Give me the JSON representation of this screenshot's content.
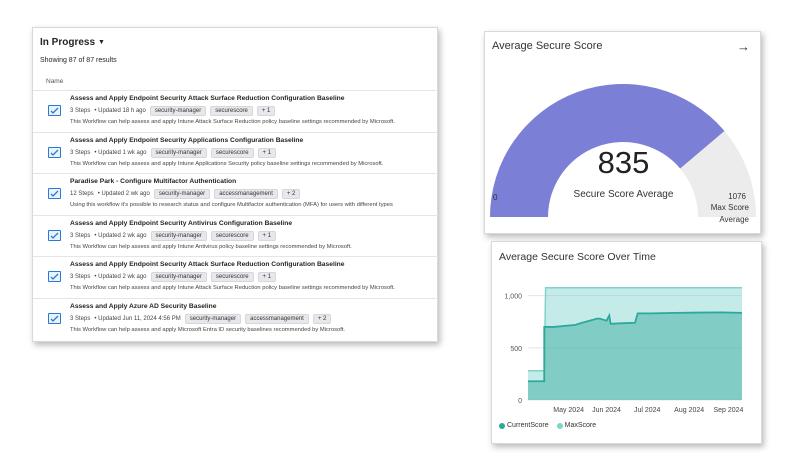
{
  "workflows": {
    "filter_label": "In Progress",
    "results_text": "Showing 87 of 87 results",
    "column_header": "Name",
    "items": [
      {
        "title": "Assess and Apply Endpoint Security Attack Surface Reduction Configuration Baseline",
        "steps": "3 Steps",
        "updated": "• Updated 18 h ago",
        "tags": [
          "security-manager",
          "securescore",
          "+ 1"
        ],
        "description": "This Workflow can help assess and apply Intune Attack Surface Reduction policy baseline settings recommended by Microsoft."
      },
      {
        "title": "Assess and Apply Endpoint Security Applications Configuration Baseline",
        "steps": "3 Steps",
        "updated": "• Updated 1 wk ago",
        "tags": [
          "security-manager",
          "securescore",
          "+ 1"
        ],
        "description": "This Workflow can help assess and apply Intune Applications Security policy baseline settings recommended by Microsoft."
      },
      {
        "title": "Paradise Park - Configure Multifactor Authentication",
        "steps": "12 Steps",
        "updated": "• Updated 2 wk ago",
        "tags": [
          "security-manager",
          "accessmanagement",
          "+ 2"
        ],
        "description": "Using this workflow it's possible to research status and configure Multifactor authentication (MFA) for users with different types"
      },
      {
        "title": "Assess and Apply Endpoint Security Antivirus Configuration Baseline",
        "steps": "3 Steps",
        "updated": "• Updated 2 wk ago",
        "tags": [
          "security-manager",
          "securescore",
          "+ 1"
        ],
        "description": "This Workflow can help assess and apply Intune Antivirus policy baseline settings recommended by Microsoft."
      },
      {
        "title": "Assess and Apply Endpoint Security Attack Surface Reduction Configuration Baseline",
        "steps": "3 Steps",
        "updated": "• Updated 2 wk ago",
        "tags": [
          "security-manager",
          "securescore",
          "+ 1"
        ],
        "description": "This Workflow can help assess and apply Intune Attack Surface Reduction policy baseline settings recommended by Microsoft."
      },
      {
        "title": "Assess and Apply Azure AD Security Baseline",
        "steps": "3 Steps",
        "updated": "• Updated Jun 11, 2024 4:56 PM",
        "tags": [
          "security-manager",
          "accessmanagement",
          "+ 2"
        ],
        "description": "This Workflow can help assess and apply Microsoft Entra ID security baselines recommended by Microsoft."
      }
    ]
  },
  "gauge": {
    "title": "Average Secure Score",
    "value": "835",
    "label": "Secure Score Average",
    "min_label": "0",
    "max_label": "1076",
    "max_caption": "Max Score Average",
    "fill_fraction": 0.776,
    "colors": {
      "fill": "#7b7fd6",
      "track": "#ececec"
    },
    "arrow_icon": "arrow-right-icon"
  },
  "chart_data": {
    "type": "area",
    "title": "Average Secure Score Over Time",
    "x_ticks": [
      "May 2024",
      "Jun 2024",
      "Jul 2024",
      "Aug 2024",
      "Sep 2024"
    ],
    "y_ticks": [
      "0",
      "500",
      "1,000"
    ],
    "ylim": [
      0,
      1150
    ],
    "grid": true,
    "legend_position": "bottom-left",
    "series": [
      {
        "name": "CurrentScore",
        "color": "#2fa89c",
        "x": [
          "2024-04-15",
          "2024-04-27",
          "2024-04-27",
          "2024-05-04",
          "2024-05-20",
          "2024-05-25",
          "2024-06-05",
          "2024-06-07",
          "2024-06-12",
          "2024-06-14",
          "2024-06-15",
          "2024-06-22",
          "2024-07-03",
          "2024-07-05",
          "2024-07-15",
          "2024-08-01",
          "2024-08-20",
          "2024-09-05",
          "2024-09-20"
        ],
        "values": [
          180,
          180,
          700,
          700,
          720,
          740,
          780,
          780,
          760,
          810,
          730,
          735,
          740,
          830,
          830,
          835,
          838,
          840,
          835
        ]
      },
      {
        "name": "MaxScore",
        "color": "#7fd3cb",
        "x": [
          "2024-04-15",
          "2024-04-27",
          "2024-04-28",
          "2024-09-20"
        ],
        "values": [
          280,
          280,
          1076,
          1076
        ]
      }
    ]
  }
}
